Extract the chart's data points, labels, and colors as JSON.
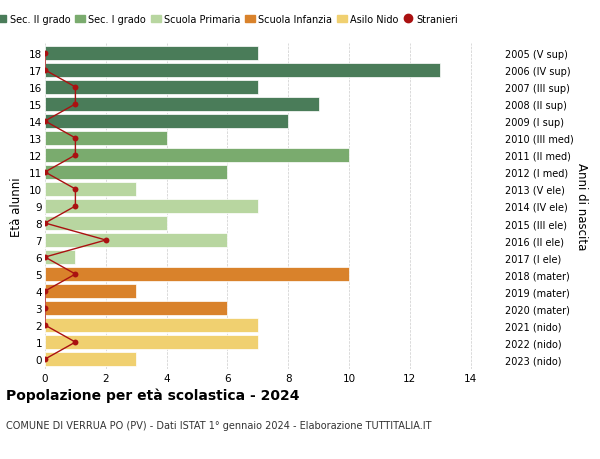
{
  "ages": [
    18,
    17,
    16,
    15,
    14,
    13,
    12,
    11,
    10,
    9,
    8,
    7,
    6,
    5,
    4,
    3,
    2,
    1,
    0
  ],
  "right_labels": [
    "2005 (V sup)",
    "2006 (IV sup)",
    "2007 (III sup)",
    "2008 (II sup)",
    "2009 (I sup)",
    "2010 (III med)",
    "2011 (II med)",
    "2012 (I med)",
    "2013 (V ele)",
    "2014 (IV ele)",
    "2015 (III ele)",
    "2016 (II ele)",
    "2017 (I ele)",
    "2018 (mater)",
    "2019 (mater)",
    "2020 (mater)",
    "2021 (nido)",
    "2022 (nido)",
    "2023 (nido)"
  ],
  "bar_values": [
    7,
    13,
    7,
    9,
    8,
    4,
    10,
    6,
    3,
    7,
    4,
    6,
    1,
    10,
    3,
    6,
    7,
    7,
    3
  ],
  "bar_colors": [
    "#4a7c59",
    "#4a7c59",
    "#4a7c59",
    "#4a7c59",
    "#4a7c59",
    "#7aab6e",
    "#7aab6e",
    "#7aab6e",
    "#b8d6a0",
    "#b8d6a0",
    "#b8d6a0",
    "#b8d6a0",
    "#b8d6a0",
    "#d9822b",
    "#d9822b",
    "#d9822b",
    "#f0d070",
    "#f0d070",
    "#f0d070"
  ],
  "stranieri_values": [
    0,
    0,
    1,
    1,
    0,
    1,
    1,
    0,
    1,
    1,
    0,
    2,
    0,
    1,
    0,
    0,
    0,
    1,
    0
  ],
  "color_sec2": "#4a7c59",
  "color_sec1": "#7aab6e",
  "color_primaria": "#b8d6a0",
  "color_infanzia": "#d9822b",
  "color_nido": "#f0d070",
  "color_stranieri": "#aa1111",
  "title_bold": "Popolazione per età scolastica - 2024",
  "subtitle": "COMUNE DI VERRUA PO (PV) - Dati ISTAT 1° gennaio 2024 - Elaborazione TUTTITALIA.IT",
  "ylabel_left": "Età alunni",
  "ylabel_right": "Anni di nascita",
  "xlim": [
    0,
    15
  ],
  "xticks": [
    0,
    2,
    4,
    6,
    8,
    10,
    12,
    14
  ],
  "background_color": "#ffffff"
}
